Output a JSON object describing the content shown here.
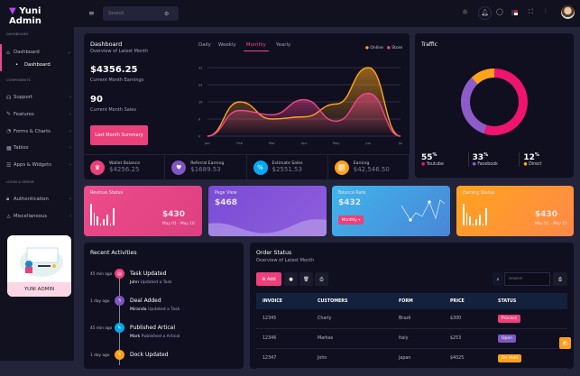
{
  "app": {
    "title": "Yuni Admin"
  },
  "header": {
    "search_placeholder": "Search"
  },
  "sidebar": {
    "sections": [
      "DASHBOARD",
      "COMPONENTS",
      "LOGIN & ERROR"
    ],
    "dashboard": {
      "label": "Dashboard",
      "sub": "Dashboard"
    },
    "items": [
      {
        "label": "Support",
        "icon": "headphones-icon"
      },
      {
        "label": "Features",
        "icon": "edit-icon"
      },
      {
        "label": "Forms & Charts",
        "icon": "pie-icon"
      },
      {
        "label": "Tables",
        "icon": "grid-icon"
      },
      {
        "label": "Apps & Widgets",
        "icon": "database-icon"
      }
    ],
    "auth_items": [
      {
        "label": "Authentication",
        "icon": "lock-icon"
      },
      {
        "label": "Miscellaneous",
        "icon": "warning-icon"
      }
    ],
    "promo": "YUNI ADMIN"
  },
  "dashboard": {
    "title": "Dashboard",
    "subtitle": "Overview of Latest Month",
    "earnings": "$4356.25",
    "earnings_label": "Current Month Earnings",
    "sales": "90",
    "sales_label": "Current Month Sales",
    "summary_button": "Last Month Summary",
    "tabs": [
      "Daily",
      "Weekly",
      "Monthly",
      "Yearly"
    ],
    "active_tab": "Monthly",
    "mini": [
      {
        "label": "Wallet Balance",
        "value": "$4256.25",
        "color": "#ec407a",
        "icon": "crown-icon"
      },
      {
        "label": "Referral Earning",
        "value": "$1689.53",
        "color": "#7e57c2",
        "icon": "heart-icon"
      },
      {
        "label": "Estimate Sales",
        "value": "$2551.53",
        "color": "#03a9f4",
        "icon": "percent-icon"
      },
      {
        "label": "Earning",
        "value": "$42,546.50",
        "color": "#ff9f1a",
        "icon": "chart-icon"
      }
    ]
  },
  "chart_data": [
    {
      "type": "area",
      "categories": [
        "Jan",
        "Feb",
        "Mar",
        "Apr",
        "May",
        "Jun",
        "Jul"
      ],
      "ylim": [
        0,
        32
      ],
      "yticks": [
        "0",
        "8",
        "16",
        "24",
        "32"
      ],
      "grid": true,
      "legend": "top-right",
      "series": [
        {
          "name": "Online",
          "color": "#ffa41b",
          "values": [
            0,
            16,
            8,
            9,
            15,
            32,
            0
          ]
        },
        {
          "name": "Store",
          "color": "#f0468e",
          "values": [
            0,
            12,
            10,
            17,
            7,
            20,
            0
          ]
        }
      ]
    },
    {
      "type": "pie",
      "title": "Traffic",
      "categories": [
        "Youtube",
        "Facebook",
        "Direct"
      ],
      "values": [
        55,
        33,
        12
      ],
      "colors": [
        "#f0146e",
        "#8e5cc9",
        "#ffa41b"
      ],
      "labels": [
        "55",
        "33",
        "12"
      ],
      "unit": "%"
    }
  ],
  "stats": {
    "revenue": {
      "title": "Revinue Status",
      "value": "$430",
      "range": "May 01 - May 10",
      "bars": [
        10,
        6,
        4,
        1,
        3,
        5,
        1,
        8
      ]
    },
    "pageview": {
      "title": "Page View",
      "value": "$468"
    },
    "bounce": {
      "title": "Bounce Rate",
      "value": "$432",
      "button": "Monthly"
    },
    "earning": {
      "title": "Earning Status",
      "value": "$430",
      "range": "May 01 - May 10",
      "bars": [
        10,
        6,
        4,
        1,
        3,
        5,
        1,
        8
      ]
    }
  },
  "activities": {
    "title": "Recent Activities",
    "items": [
      {
        "time": "45 min ago",
        "title": "Task Updated",
        "user": "John",
        "text": "Updated a Task",
        "color": "#ec407a"
      },
      {
        "time": "1 day ago",
        "title": "Deal Added",
        "user": "Miranda",
        "text": "Updated a Task",
        "color": "#7e57c2"
      },
      {
        "time": "45 min ago",
        "title": "Published Artical",
        "user": "Mark",
        "text": "Published a Artical",
        "color": "#03a9f4"
      },
      {
        "time": "1 day ago",
        "title": "Dock Updated",
        "user": "",
        "text": "",
        "color": "#ff9f1a"
      }
    ]
  },
  "orders": {
    "title": "Order Status",
    "subtitle": "Overview of Latest Month",
    "add": "Add",
    "search_placeholder": "Search",
    "columns": [
      "INVOICE",
      "CUSTOMERS",
      "FORM",
      "PRICE",
      "STATUS"
    ],
    "rows": [
      [
        "12345",
        "Charly",
        "Brazil",
        "$300",
        "Process"
      ],
      [
        "12346",
        "Markas",
        "Italy",
        "$253",
        "Open"
      ],
      [
        "12347",
        "John",
        "Japan",
        "$4025",
        "On Hold"
      ]
    ],
    "status_colors": {
      "Process": "#ec407a",
      "Open": "#7e57c2",
      "On Hold": "#ff9f1a"
    }
  }
}
